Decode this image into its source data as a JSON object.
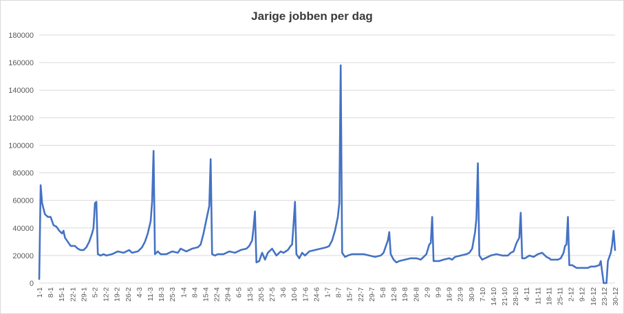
{
  "chart_data": {
    "type": "line",
    "title": "Jarige jobben per dag",
    "xlabel": "",
    "ylabel": "",
    "ylim": [
      0,
      180000
    ],
    "y_ticks": [
      "0",
      "20000",
      "40000",
      "60000",
      "80000",
      "100000",
      "120000",
      "140000",
      "160000",
      "180000"
    ],
    "x_tick_labels": [
      "1-1",
      "8-1",
      "15-1",
      "22-1",
      "29-1",
      "5-2",
      "12-2",
      "19-2",
      "26-2",
      "4-3",
      "11-3",
      "18-3",
      "25-3",
      "1-4",
      "8-4",
      "15-4",
      "22-4",
      "29-4",
      "6-5",
      "13-5",
      "20-5",
      "27-5",
      "3-6",
      "10-6",
      "17-6",
      "24-6",
      "1-7",
      "8-7",
      "15-7",
      "22-7",
      "29-7",
      "5-8",
      "12-8",
      "19-8",
      "26-8",
      "2-9",
      "9-9",
      "16-9",
      "23-9",
      "30-9",
      "7-10",
      "14-10",
      "21-10",
      "28-10",
      "4-11",
      "11-11",
      "18-11",
      "25-11",
      "2-12",
      "9-12",
      "16-12",
      "23-12",
      "30-12"
    ],
    "grid": true,
    "legend": "none",
    "series_color": "#4472c4",
    "series": [
      {
        "points": [
          [
            1,
            3000
          ],
          [
            2,
            71000
          ],
          [
            3,
            58000
          ],
          [
            5,
            50000
          ],
          [
            7,
            48000
          ],
          [
            9,
            48000
          ],
          [
            11,
            42000
          ],
          [
            13,
            41000
          ],
          [
            15,
            38000
          ],
          [
            17,
            36000
          ],
          [
            18,
            38000
          ],
          [
            19,
            33000
          ],
          [
            21,
            30000
          ],
          [
            23,
            27000
          ],
          [
            26,
            27000
          ],
          [
            28,
            25000
          ],
          [
            30,
            24000
          ],
          [
            32,
            24000
          ],
          [
            34,
            26000
          ],
          [
            36,
            30000
          ],
          [
            38,
            36000
          ],
          [
            39,
            40000
          ],
          [
            40,
            58000
          ],
          [
            41,
            59000
          ],
          [
            42,
            21000
          ],
          [
            44,
            20000
          ],
          [
            46,
            21000
          ],
          [
            48,
            20000
          ],
          [
            52,
            21000
          ],
          [
            56,
            23000
          ],
          [
            60,
            22000
          ],
          [
            64,
            24000
          ],
          [
            66,
            22000
          ],
          [
            70,
            23000
          ],
          [
            73,
            26000
          ],
          [
            75,
            30000
          ],
          [
            77,
            36000
          ],
          [
            79,
            45000
          ],
          [
            80,
            59000
          ],
          [
            81,
            96000
          ],
          [
            82,
            21000
          ],
          [
            84,
            23000
          ],
          [
            86,
            21000
          ],
          [
            90,
            21000
          ],
          [
            94,
            23000
          ],
          [
            98,
            22000
          ],
          [
            100,
            25000
          ],
          [
            104,
            23000
          ],
          [
            108,
            25000
          ],
          [
            112,
            26000
          ],
          [
            114,
            28000
          ],
          [
            116,
            36000
          ],
          [
            118,
            46000
          ],
          [
            120,
            56000
          ],
          [
            121,
            90000
          ],
          [
            122,
            21000
          ],
          [
            124,
            20000
          ],
          [
            126,
            21000
          ],
          [
            130,
            21000
          ],
          [
            134,
            23000
          ],
          [
            138,
            22000
          ],
          [
            142,
            24000
          ],
          [
            146,
            25000
          ],
          [
            148,
            27000
          ],
          [
            150,
            31000
          ],
          [
            151,
            40000
          ],
          [
            152,
            52000
          ],
          [
            153,
            15000
          ],
          [
            155,
            16000
          ],
          [
            157,
            22000
          ],
          [
            159,
            17000
          ],
          [
            161,
            22000
          ],
          [
            164,
            25000
          ],
          [
            167,
            20000
          ],
          [
            170,
            23000
          ],
          [
            172,
            22000
          ],
          [
            175,
            24000
          ],
          [
            177,
            27000
          ],
          [
            178,
            28000
          ],
          [
            179,
            43000
          ],
          [
            180,
            59000
          ],
          [
            181,
            21000
          ],
          [
            183,
            18000
          ],
          [
            185,
            22000
          ],
          [
            187,
            20000
          ],
          [
            190,
            23000
          ],
          [
            194,
            24000
          ],
          [
            198,
            25000
          ],
          [
            202,
            26000
          ],
          [
            204,
            27000
          ],
          [
            206,
            31000
          ],
          [
            208,
            38000
          ],
          [
            210,
            48000
          ],
          [
            211,
            58000
          ],
          [
            212,
            158000
          ],
          [
            213,
            22000
          ],
          [
            215,
            19000
          ],
          [
            217,
            20000
          ],
          [
            220,
            21000
          ],
          [
            224,
            21000
          ],
          [
            228,
            21000
          ],
          [
            232,
            20000
          ],
          [
            236,
            19000
          ],
          [
            240,
            20000
          ],
          [
            242,
            22000
          ],
          [
            244,
            28000
          ],
          [
            245,
            31000
          ],
          [
            246,
            37000
          ],
          [
            247,
            21000
          ],
          [
            249,
            17000
          ],
          [
            251,
            15000
          ],
          [
            253,
            16000
          ],
          [
            257,
            17000
          ],
          [
            261,
            18000
          ],
          [
            265,
            18000
          ],
          [
            268,
            17000
          ],
          [
            270,
            19000
          ],
          [
            272,
            21000
          ],
          [
            274,
            28000
          ],
          [
            275,
            29000
          ],
          [
            276,
            48000
          ],
          [
            277,
            16000
          ],
          [
            279,
            16000
          ],
          [
            281,
            16000
          ],
          [
            284,
            17000
          ],
          [
            288,
            18000
          ],
          [
            290,
            17000
          ],
          [
            292,
            19000
          ],
          [
            296,
            20000
          ],
          [
            300,
            21000
          ],
          [
            302,
            22000
          ],
          [
            304,
            25000
          ],
          [
            306,
            37000
          ],
          [
            307,
            47000
          ],
          [
            308,
            87000
          ],
          [
            309,
            20000
          ],
          [
            311,
            17000
          ],
          [
            313,
            18000
          ],
          [
            317,
            20000
          ],
          [
            321,
            21000
          ],
          [
            325,
            20000
          ],
          [
            329,
            20000
          ],
          [
            331,
            22000
          ],
          [
            333,
            23000
          ],
          [
            335,
            29000
          ],
          [
            337,
            33000
          ],
          [
            338,
            51000
          ],
          [
            339,
            18000
          ],
          [
            341,
            18000
          ],
          [
            344,
            20000
          ],
          [
            347,
            19000
          ],
          [
            350,
            21000
          ],
          [
            353,
            22000
          ],
          [
            356,
            19000
          ],
          [
            358,
            18000
          ],
          [
            359,
            17000
          ],
          [
            361,
            17000
          ],
          [
            364,
            17000
          ],
          [
            366,
            18000
          ],
          [
            368,
            22000
          ],
          [
            369,
            27000
          ],
          [
            370,
            28000
          ],
          [
            371,
            48000
          ],
          [
            372,
            13000
          ],
          [
            374,
            13000
          ],
          [
            377,
            11000
          ],
          [
            381,
            11000
          ],
          [
            385,
            11000
          ],
          [
            387,
            12000
          ],
          [
            390,
            12000
          ],
          [
            393,
            13000
          ],
          [
            394,
            16000
          ],
          [
            395,
            8000
          ],
          [
            396,
            0
          ],
          [
            398,
            0
          ],
          [
            399,
            16000
          ],
          [
            401,
            22000
          ],
          [
            402,
            28000
          ],
          [
            403,
            38000
          ],
          [
            404,
            24000
          ]
        ]
      }
    ]
  }
}
